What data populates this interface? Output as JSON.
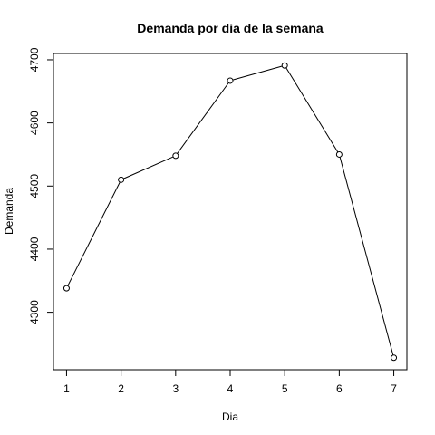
{
  "chart_data": {
    "type": "line",
    "title": "Demanda por dia de la semana",
    "xlabel": "Dia",
    "ylabel": "Demanda",
    "x": [
      1,
      2,
      3,
      4,
      5,
      6,
      7
    ],
    "series": [
      {
        "values": [
          4338,
          4510,
          4548,
          4667,
          4691,
          4550,
          4228
        ]
      }
    ],
    "xlim": [
      0.76,
      7.24
    ],
    "ylim": [
      4209,
      4710
    ],
    "x_ticks": [
      1,
      2,
      3,
      4,
      5,
      6,
      7
    ],
    "y_ticks": [
      4300,
      4400,
      4500,
      4600,
      4700
    ],
    "grid": false,
    "line_color": "#000000",
    "marker": "open-circle"
  }
}
